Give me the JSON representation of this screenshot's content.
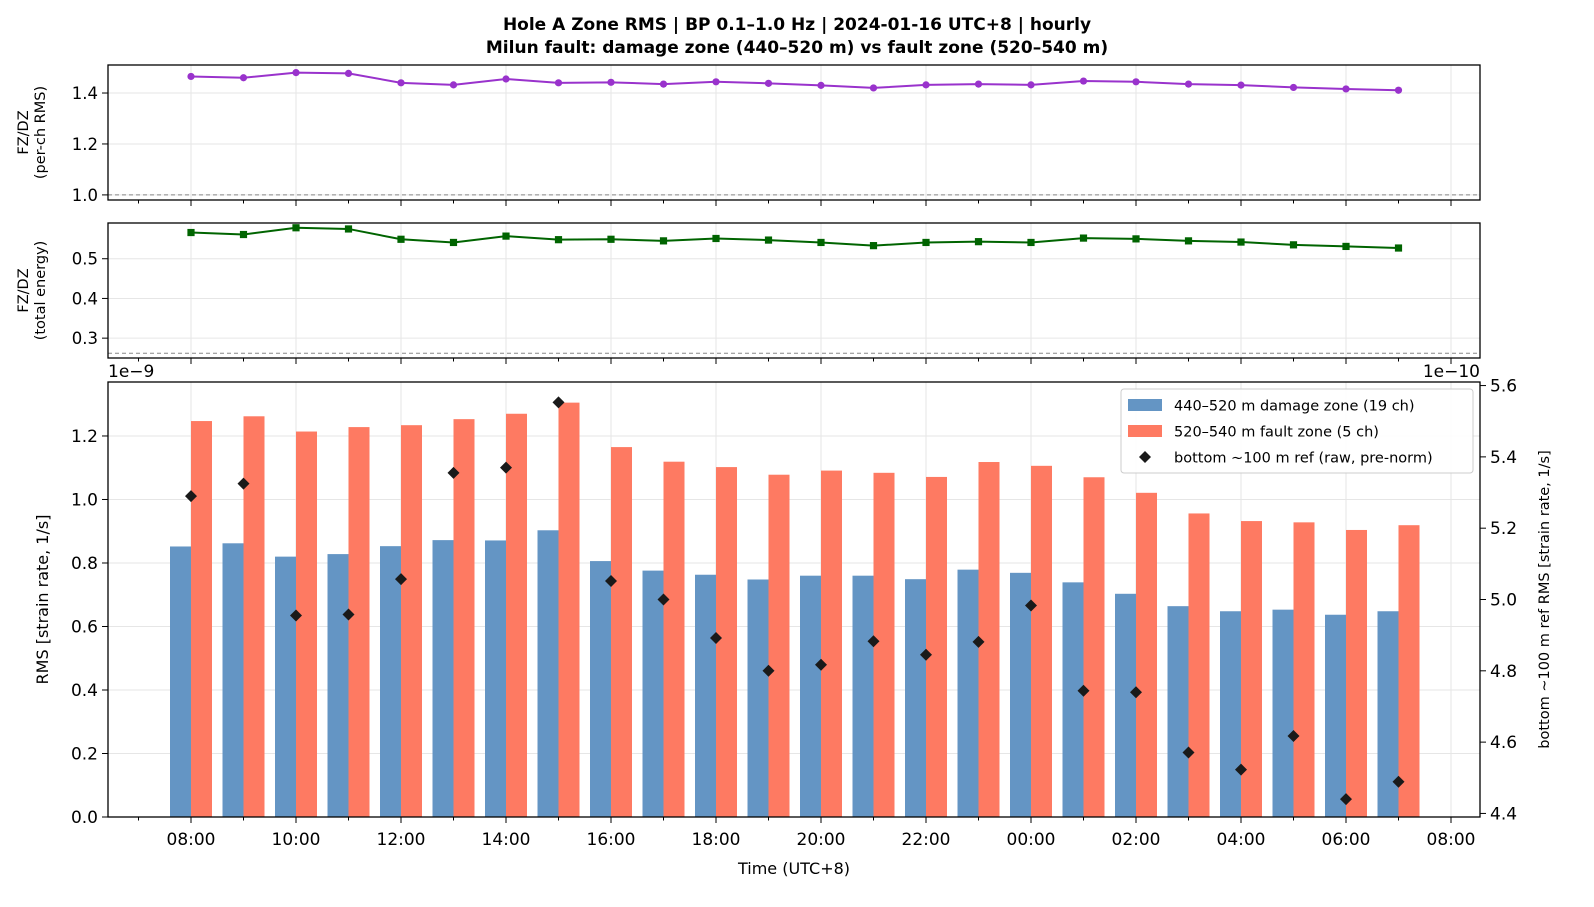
{
  "title_line1": "Hole A Zone RMS  |  BP 0.1–1.0 Hz  |  2024-01-16 UTC+8  |  hourly",
  "title_line2": "Milun fault: damage zone (440–520 m) vs fault zone (520–540 m)",
  "colors": {
    "damage": "#6495c4",
    "fault": "#fe7a62",
    "ratio_rms": "#9932cc",
    "ratio_energy": "#006400",
    "ref": "#1a1a1a"
  },
  "chart_data": [
    {
      "type": "line",
      "ylabel": "FZ/DZ\n(per-ch RMS)",
      "ylim": [
        0.98,
        1.51
      ],
      "yticks": [
        "1.0",
        "1.2",
        "1.4"
      ],
      "ref_line": 1.0,
      "x": [
        "08:00",
        "09:00",
        "10:00",
        "11:00",
        "12:00",
        "13:00",
        "14:00",
        "15:00",
        "16:00",
        "17:00",
        "18:00",
        "19:00",
        "20:00",
        "21:00",
        "22:00",
        "23:00",
        "00:00",
        "01:00",
        "02:00",
        "03:00",
        "04:00",
        "05:00",
        "06:00",
        "07:00"
      ],
      "series": [
        {
          "values": [
            1.465,
            1.46,
            1.48,
            1.477,
            1.44,
            1.432,
            1.455,
            1.44,
            1.442,
            1.435,
            1.444,
            1.438,
            1.43,
            1.42,
            1.432,
            1.435,
            1.432,
            1.447,
            1.444,
            1.435,
            1.431,
            1.422,
            1.416,
            1.411
          ]
        }
      ],
      "grid": true
    },
    {
      "type": "line",
      "ylabel": "FZ/DZ\n(total energy)",
      "ylim": [
        0.25,
        0.59
      ],
      "yticks": [
        "0.3",
        "0.4",
        "0.5"
      ],
      "ref_line": 0.262,
      "x": [
        "08:00",
        "09:00",
        "10:00",
        "11:00",
        "12:00",
        "13:00",
        "14:00",
        "15:00",
        "16:00",
        "17:00",
        "18:00",
        "19:00",
        "20:00",
        "21:00",
        "22:00",
        "23:00",
        "00:00",
        "01:00",
        "02:00",
        "03:00",
        "04:00",
        "05:00",
        "06:00",
        "07:00"
      ],
      "series": [
        {
          "values": [
            0.566,
            0.561,
            0.578,
            0.575,
            0.549,
            0.541,
            0.557,
            0.548,
            0.549,
            0.545,
            0.551,
            0.547,
            0.541,
            0.533,
            0.541,
            0.543,
            0.541,
            0.552,
            0.55,
            0.545,
            0.542,
            0.535,
            0.531,
            0.527
          ]
        }
      ],
      "x_offset_labels": [
        "1e−9",
        "1e−10"
      ],
      "grid": true
    },
    {
      "type": "bar",
      "xlabel": "Time (UTC+8)",
      "ylabel": "RMS  [strain rate, 1/s]",
      "y2label": "bottom ~100 m ref RMS  [strain rate, 1/s]",
      "ylim": [
        0,
        1.37
      ],
      "yticks": [
        "0.0",
        "0.2",
        "0.4",
        "0.6",
        "0.8",
        "1.0",
        "1.2"
      ],
      "y2lim": [
        4.39,
        5.61
      ],
      "y2ticks": [
        "4.4",
        "4.6",
        "4.8",
        "5.0",
        "5.2",
        "5.4",
        "5.6"
      ],
      "xtick_labels": [
        "08:00",
        "10:00",
        "12:00",
        "14:00",
        "16:00",
        "18:00",
        "20:00",
        "22:00",
        "00:00",
        "02:00",
        "04:00",
        "06:00",
        "08:00"
      ],
      "categories": [
        "08:00",
        "09:00",
        "10:00",
        "11:00",
        "12:00",
        "13:00",
        "14:00",
        "15:00",
        "16:00",
        "17:00",
        "18:00",
        "19:00",
        "20:00",
        "21:00",
        "22:00",
        "23:00",
        "00:00",
        "01:00",
        "02:00",
        "03:00",
        "04:00",
        "05:00",
        "06:00",
        "07:00"
      ],
      "series": [
        {
          "name": "440–520 m  damage zone (19 ch)",
          "values": [
            0.852,
            0.862,
            0.82,
            0.828,
            0.853,
            0.872,
            0.871,
            0.903,
            0.806,
            0.776,
            0.763,
            0.748,
            0.76,
            0.76,
            0.749,
            0.779,
            0.769,
            0.739,
            0.703,
            0.664,
            0.648,
            0.653,
            0.637,
            0.648
          ]
        },
        {
          "name": "520–540 m  fault zone (5 ch)",
          "values": [
            1.247,
            1.262,
            1.214,
            1.228,
            1.234,
            1.253,
            1.27,
            1.305,
            1.165,
            1.119,
            1.102,
            1.078,
            1.091,
            1.084,
            1.071,
            1.118,
            1.106,
            1.07,
            1.021,
            0.956,
            0.932,
            0.928,
            0.904,
            0.919
          ]
        },
        {
          "name": "bottom ~100 m ref (raw, pre-norm)",
          "axis": "right",
          "values": [
            5.29,
            5.325,
            4.955,
            4.958,
            5.057,
            5.355,
            5.37,
            5.553,
            5.052,
            5,
            4.892,
            4.8,
            4.817,
            4.883,
            4.845,
            4.881,
            4.983,
            4.744,
            4.74,
            4.571,
            4.523,
            4.617,
            4.44,
            4.489
          ]
        }
      ],
      "legend": "top-right",
      "grid": true
    }
  ]
}
